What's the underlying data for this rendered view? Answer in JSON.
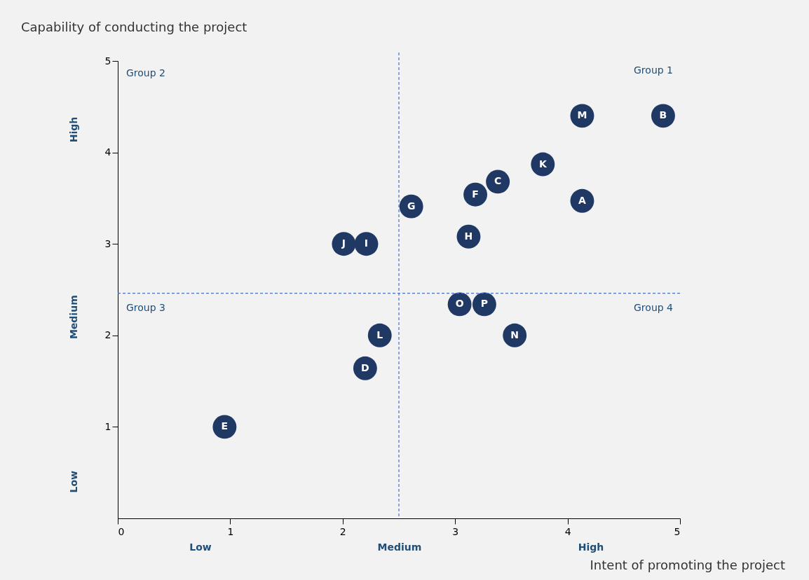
{
  "chart_data": {
    "type": "scatter",
    "xlabel": "Intent of promoting the project",
    "ylabel": "Capability of conducting the project",
    "x": [
      4.13,
      4.85,
      3.78,
      3.38,
      3.18,
      4.13,
      2.61,
      3.12,
      2.01,
      2.21,
      3.04,
      3.26,
      2.33,
      3.53,
      2.2,
      0.95
    ],
    "series": [
      {
        "color": "#1f3864",
        "values": [
          4.4,
          4.4,
          3.87,
          3.68,
          3.54,
          3.47,
          3.41,
          3.08,
          3.0,
          3.0,
          2.34,
          2.34,
          2.0,
          2.0,
          1.64,
          1.0
        ]
      }
    ],
    "xlim": [
      0,
      5
    ],
    "ylim": [
      0,
      5
    ],
    "xticks": [
      0,
      1,
      2,
      3,
      4,
      5
    ],
    "yticks": [
      1,
      2,
      3,
      4,
      5
    ],
    "grid": false,
    "marker": "circle",
    "ref_lines": [
      {
        "axis": "x",
        "value": 2.5,
        "color": "#4472c4",
        "line_style": "dashed"
      },
      {
        "axis": "y",
        "value": 2.46,
        "color": "#4472c4",
        "line_style": "dashed"
      }
    ],
    "annotations": [
      "Group 1",
      "Group 2",
      "Group 3",
      "Group 4",
      "Low",
      "Medium",
      "High",
      "Low",
      "Medium",
      "High",
      {
        "text": "M",
        "x": 4.13,
        "y": 4.4
      },
      {
        "text": "B",
        "x": 4.85,
        "y": 4.4
      },
      {
        "text": "K",
        "x": 3.78,
        "y": 3.87
      },
      {
        "text": "C",
        "x": 3.38,
        "y": 3.68
      },
      {
        "text": "F",
        "x": 3.18,
        "y": 3.54
      },
      {
        "text": "A",
        "x": 4.13,
        "y": 3.47
      },
      {
        "text": "G",
        "x": 2.61,
        "y": 3.41
      },
      {
        "text": "H",
        "x": 3.12,
        "y": 3.08
      },
      {
        "text": "J",
        "x": 2.01,
        "y": 3.0
      },
      {
        "text": "I",
        "x": 2.21,
        "y": 3.0
      },
      {
        "text": "O",
        "x": 3.04,
        "y": 2.34
      },
      {
        "text": "P",
        "x": 3.26,
        "y": 2.34
      },
      {
        "text": "L",
        "x": 2.33,
        "y": 2.0
      },
      {
        "text": "N",
        "x": 3.53,
        "y": 2.0
      },
      {
        "text": "D",
        "x": 2.2,
        "y": 1.64
      },
      {
        "text": "E",
        "x": 0.95,
        "y": 1.0
      }
    ]
  }
}
